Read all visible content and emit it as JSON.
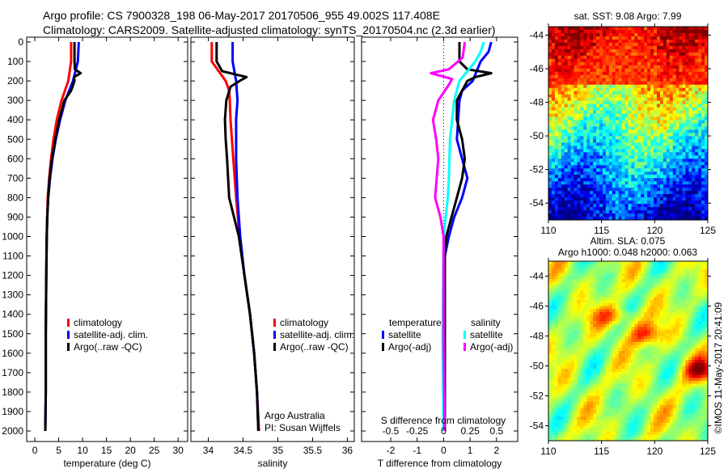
{
  "title": {
    "line1": "Argo profile: CS 7900328_198 06-May-2017 20170506_955 49.002S 117.408E",
    "line2": "Climatology: CARS2009. Satellite-adjusted climatology: synTS_20170504.nc (2.3d earlier)"
  },
  "colors": {
    "climatology": "#ff0000",
    "satellite": "#0000ff",
    "argo": "#000000",
    "sal_satellite": "#00ffff",
    "sal_argo": "#ff00ff"
  },
  "chart_data": [
    {
      "type": "line",
      "name": "temperature",
      "xlabel": "temperature (deg C)",
      "ylabel": "",
      "xlim": [
        -1.7,
        32
      ],
      "ylim": [
        2050,
        0
      ],
      "xticks": [
        0,
        5,
        10,
        15,
        20,
        25,
        30
      ],
      "yticks": [
        0,
        100,
        200,
        300,
        400,
        500,
        600,
        700,
        800,
        900,
        1000,
        1100,
        1200,
        1300,
        1400,
        1500,
        1600,
        1700,
        1800,
        1900,
        2000
      ],
      "legend": [
        "climatology",
        "satellite-adj. clim.",
        "Argo(..raw -QC)"
      ],
      "series": [
        {
          "name": "climatology",
          "depth": [
            0,
            100,
            200,
            300,
            400,
            500,
            600,
            700,
            800,
            900,
            1000,
            1200,
            1500,
            1800,
            2000
          ],
          "values": [
            7.6,
            7.6,
            7.0,
            5.6,
            4.6,
            3.9,
            3.4,
            3.0,
            2.7,
            2.6,
            2.5,
            2.4,
            2.3,
            2.3,
            2.2
          ]
        },
        {
          "name": "satellite-adj. clim.",
          "depth": [
            0,
            100,
            200,
            300,
            400,
            500,
            600,
            700,
            800,
            900,
            1000,
            1200,
            1500,
            1800,
            2000
          ],
          "values": [
            9.2,
            9.0,
            8.0,
            6.4,
            5.3,
            4.4,
            3.7,
            3.2,
            2.8,
            2.6,
            2.5,
            2.4,
            2.3,
            2.3,
            2.2
          ]
        },
        {
          "name": "Argo(..raw -QC)",
          "depth": [
            0,
            100,
            140,
            160,
            180,
            200,
            250,
            300,
            400,
            500,
            600,
            700,
            800,
            900,
            1000,
            1200,
            1500,
            1800,
            2000
          ],
          "values": [
            8.3,
            8.3,
            8.4,
            9.6,
            8.2,
            8.3,
            7.6,
            6.2,
            5.1,
            4.3,
            3.6,
            3.1,
            2.8,
            2.6,
            2.5,
            2.4,
            2.3,
            2.3,
            2.2
          ]
        }
      ]
    },
    {
      "type": "line",
      "name": "salinity",
      "xlabel": "salinity",
      "ylabel": "",
      "xlim": [
        33.75,
        36.1
      ],
      "ylim": [
        2050,
        0
      ],
      "xticks": [
        34,
        34.5,
        35,
        35.5,
        36
      ],
      "legend": [
        "climatology",
        "satellite-adj. clim.",
        "Argo(..raw -QC)"
      ],
      "annotations": [
        "Argo Australia",
        "PI: Susan Wijffels"
      ],
      "series": [
        {
          "name": "climatology",
          "depth": [
            0,
            100,
            200,
            250,
            300,
            400,
            600,
            800,
            1000,
            1200,
            1400,
            1600,
            1800,
            2000
          ],
          "values": [
            34.05,
            34.05,
            34.25,
            34.3,
            34.31,
            34.32,
            34.36,
            34.4,
            34.45,
            34.52,
            34.6,
            34.66,
            34.7,
            34.73
          ]
        },
        {
          "name": "satellite-adj. clim.",
          "depth": [
            0,
            100,
            200,
            300,
            400,
            600,
            800,
            1000,
            1200,
            1400,
            1600,
            1800,
            2000
          ],
          "values": [
            34.35,
            34.35,
            34.4,
            34.42,
            34.4,
            34.4,
            34.42,
            34.46,
            34.52,
            34.6,
            34.66,
            34.7,
            34.72
          ]
        },
        {
          "name": "Argo(..raw -QC)",
          "depth": [
            0,
            100,
            150,
            180,
            200,
            230,
            300,
            400,
            500,
            600,
            800,
            1000,
            1200,
            1400,
            1600,
            1800,
            2000
          ],
          "values": [
            34.12,
            34.12,
            34.2,
            34.55,
            34.45,
            34.32,
            34.26,
            34.24,
            34.25,
            34.27,
            34.3,
            34.44,
            34.52,
            34.6,
            34.66,
            34.7,
            34.72
          ]
        }
      ]
    },
    {
      "type": "line",
      "name": "difference",
      "xlabel": "T difference from climatology",
      "x2label": "S difference from climatology",
      "xlim": [
        -3.1,
        2.8
      ],
      "ylim": [
        2050,
        0
      ],
      "xticks": [
        -2,
        -1,
        0,
        1,
        2
      ],
      "x2ticks": [
        -0.5,
        -0.25,
        0,
        0.25,
        0.5
      ],
      "x2tick_labels": [
        "-0.5",
        "-0.25",
        "0",
        "0.25",
        "0.5"
      ],
      "legend": {
        "temperature": "temperature",
        "salinity": "salinity",
        "t_sat": "satellite",
        "t_argo": "Argo(-adj)",
        "s_sat": "satellite",
        "s_argo": "Argo(-adj)"
      },
      "series": [
        {
          "name": "T satellite",
          "axis": "T",
          "depth": [
            0,
            50,
            100,
            200,
            250,
            300,
            400,
            500,
            600,
            700,
            800,
            900,
            1000,
            1100,
            1500,
            2000
          ],
          "values": [
            1.8,
            1.7,
            1.4,
            1.1,
            0.7,
            0.6,
            0.55,
            0.5,
            0.7,
            0.9,
            0.7,
            0.4,
            0.2,
            0.05,
            0.05,
            0.05
          ]
        },
        {
          "name": "T Argo(-adj)",
          "axis": "T",
          "depth": [
            0,
            100,
            140,
            160,
            180,
            200,
            250,
            300,
            400,
            500,
            600,
            700,
            800,
            900,
            1000,
            1100,
            1500,
            2000
          ],
          "values": [
            0.6,
            0.6,
            0.9,
            1.8,
            1.2,
            0.9,
            0.7,
            0.5,
            0.5,
            0.7,
            0.8,
            0.7,
            0.5,
            0.3,
            0.1,
            0.05,
            0.05,
            0.04
          ]
        },
        {
          "name": "S satellite",
          "axis": "S",
          "depth": [
            0,
            50,
            100,
            200,
            300,
            500,
            700,
            800,
            1000,
            1500,
            2000
          ],
          "values": [
            0.38,
            0.35,
            0.3,
            0.15,
            0.1,
            0.06,
            0.05,
            0.04,
            0.0,
            -0.01,
            0.0
          ]
        },
        {
          "name": "S Argo(-adj)",
          "axis": "S",
          "depth": [
            0,
            80,
            140,
            160,
            190,
            220,
            300,
            400,
            500,
            600,
            800,
            900,
            1000,
            1500,
            2000
          ],
          "values": [
            0.2,
            0.18,
            0.05,
            -0.12,
            0.08,
            0.05,
            -0.05,
            -0.1,
            -0.07,
            -0.05,
            -0.08,
            -0.03,
            0.0,
            0.0,
            0.01
          ]
        }
      ]
    },
    {
      "type": "heatmap",
      "name": "sst-map",
      "title": "sat. SST: 9.08  Argo: 7.99",
      "xlim": [
        110,
        125
      ],
      "ylim": [
        -55,
        -43.5
      ],
      "xticks": [
        110,
        115,
        120,
        125
      ],
      "yticks": [
        -44,
        -46,
        -48,
        -50,
        -52,
        -54
      ]
    },
    {
      "type": "heatmap",
      "name": "sla-map",
      "title": "Altim. SLA: 0.075",
      "subtitle": "Argo h1000: 0.048 h2000: 0.063",
      "xlim": [
        110,
        125
      ],
      "ylim": [
        -55,
        -43
      ],
      "xticks": [
        110,
        115,
        120,
        125
      ],
      "yticks": [
        -44,
        -46,
        -48,
        -50,
        -52,
        -54
      ]
    }
  ],
  "credit": "©IMOS 11-May-2017 20:41:09"
}
